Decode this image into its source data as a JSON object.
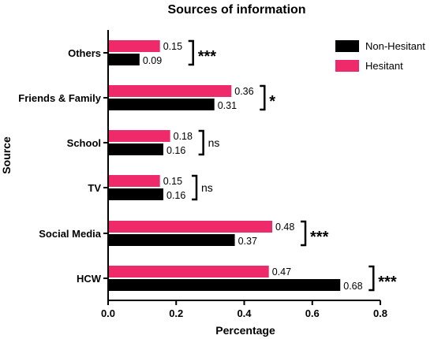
{
  "chart_data": {
    "type": "bar",
    "orientation": "horizontal",
    "title": "Sources of information",
    "xlabel": "Percentage",
    "ylabel": "Source",
    "xlim": [
      0,
      0.8
    ],
    "xticks": [
      "0.0",
      "0.2",
      "0.4",
      "0.6",
      "0.8"
    ],
    "xtick_values": [
      0,
      0.2,
      0.4,
      0.6,
      0.8
    ],
    "grid": false,
    "legend_position": "top-right",
    "categories": [
      "Others",
      "Friends & Family",
      "School",
      "TV",
      "Social Media",
      "HCW"
    ],
    "series": [
      {
        "name": "Hesitant",
        "color": "#ee2a6a",
        "values": [
          0.15,
          0.36,
          0.18,
          0.15,
          0.48,
          0.47
        ]
      },
      {
        "name": "Non-Hesitant",
        "color": "#000000",
        "values": [
          0.09,
          0.31,
          0.16,
          0.16,
          0.37,
          0.68
        ]
      }
    ],
    "value_labels": {
      "Hesitant": [
        "0.15",
        "0.36",
        "0.18",
        "0.15",
        "0.48",
        "0.47"
      ],
      "Non-Hesitant": [
        "0.09",
        "0.31",
        "0.16",
        "0.16",
        "0.37",
        "0.68"
      ]
    },
    "significance": [
      "***",
      "*",
      "ns",
      "ns",
      "***",
      "***"
    ],
    "legend_order": [
      "Non-Hesitant",
      "Hesitant"
    ]
  }
}
